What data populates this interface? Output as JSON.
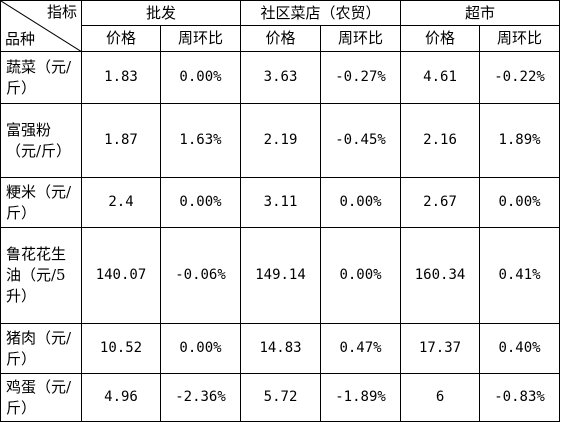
{
  "header": {
    "corner_top": "指标",
    "corner_bottom": "品种",
    "groups": [
      "批发",
      "社区菜店（农贸）",
      "超市"
    ],
    "subheaders": [
      "价格",
      "周环比",
      "价格",
      "周环比",
      "价格",
      "周环比"
    ]
  },
  "rows": [
    {
      "name": "蔬菜（元/斤）",
      "values": [
        "1.83",
        "0.00%",
        "3.63",
        "-0.27%",
        "4.61",
        "-0.22%"
      ]
    },
    {
      "name": "富强粉（元/斤）",
      "values": [
        "1.87",
        "1.63%",
        "2.19",
        "-0.45%",
        "2.16",
        "1.89%"
      ]
    },
    {
      "name": "粳米（元/斤）",
      "values": [
        "2.4",
        "0.00%",
        "3.11",
        "0.00%",
        "2.67",
        "0.00%"
      ]
    },
    {
      "name": "鲁花花生油（元/5升）",
      "values": [
        "140.07",
        "-0.06%",
        "149.14",
        "0.00%",
        "160.34",
        "0.41%"
      ]
    },
    {
      "name": "猪肉（元/斤）",
      "values": [
        "10.52",
        "0.00%",
        "14.83",
        "0.47%",
        "17.37",
        "0.40%"
      ]
    },
    {
      "name": "鸡蛋（元/斤）",
      "values": [
        "4.96",
        "-2.36%",
        "5.72",
        "-1.89%",
        "6",
        "-0.83%"
      ]
    }
  ]
}
